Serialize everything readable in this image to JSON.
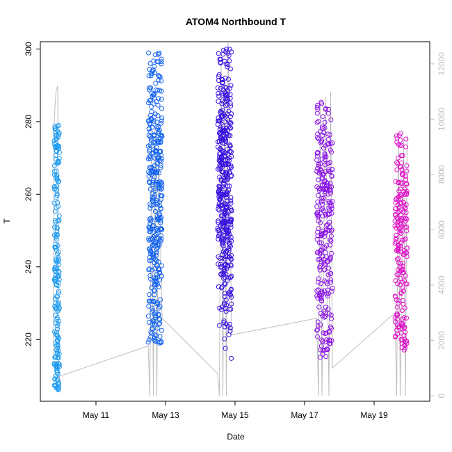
{
  "chart_data": {
    "type": "scatter",
    "title": "ATOM4 Northbound T",
    "xlabel": "Date",
    "ylabel": "T",
    "x_ticks": [
      "May 11",
      "May 13",
      "May 15",
      "May 17",
      "May 19"
    ],
    "x_tick_days": [
      11,
      13,
      15,
      17,
      19
    ],
    "xlim_days": [
      9.4,
      20.6
    ],
    "ylim": [
      203,
      302
    ],
    "y_ticks": [
      220,
      240,
      260,
      280,
      300
    ],
    "secondary_axis": {
      "side": "right",
      "color": "#bdbdbd",
      "ylim": [
        -200,
        12800
      ],
      "ticks": [
        0,
        2000,
        4000,
        6000,
        8000,
        10000,
        12000
      ]
    },
    "point_style": "open-circle",
    "point_groups": [
      {
        "color": "#1e9bf0",
        "x_range_days": [
          9.8,
          9.95
        ],
        "y_min": 206,
        "y_max": 279,
        "clusters": [
          [
            214,
            8
          ],
          [
            222,
            6
          ],
          [
            244,
            10
          ],
          [
            270,
            10
          ]
        ]
      },
      {
        "color": "#1463f0",
        "x_range_days": [
          12.5,
          12.9
        ],
        "y_min": 219,
        "y_max": 299,
        "clusters": [
          [
            225,
            10
          ],
          [
            248,
            20
          ],
          [
            270,
            20
          ],
          [
            288,
            10
          ]
        ]
      },
      {
        "color": "#3a12e0",
        "x_range_days": [
          14.5,
          14.9
        ],
        "y_min": 212,
        "y_max": 300,
        "clusters": [
          [
            230,
            8
          ],
          [
            250,
            25
          ],
          [
            270,
            25
          ],
          [
            290,
            12
          ]
        ]
      },
      {
        "color": "#8a12e6",
        "x_range_days": [
          17.35,
          17.8
        ],
        "y_min": 215,
        "y_max": 286,
        "clusters": [
          [
            228,
            12
          ],
          [
            242,
            6
          ],
          [
            258,
            20
          ],
          [
            276,
            8
          ]
        ]
      },
      {
        "color": "#e010c8",
        "x_range_days": [
          19.6,
          19.95
        ],
        "y_min": 217,
        "y_max": 277,
        "clusters": [
          [
            226,
            8
          ],
          [
            236,
            6
          ],
          [
            255,
            15
          ],
          [
            266,
            5
          ]
        ]
      }
    ],
    "secondary_series": [
      {
        "name": "",
        "color": "#bdbdbd",
        "type": "line",
        "values": [
          [
            9.78,
            1500
          ],
          [
            9.8,
            10000
          ],
          [
            9.85,
            11000
          ],
          [
            9.9,
            11200
          ],
          [
            9.93,
            500
          ],
          [
            9.95,
            700
          ],
          [
            12.5,
            1800
          ],
          [
            12.55,
            0
          ],
          [
            12.6,
            9500
          ],
          [
            12.65,
            0
          ],
          [
            12.7,
            9800
          ],
          [
            12.75,
            0
          ],
          [
            12.8,
            9000
          ],
          [
            12.9,
            2800
          ],
          [
            14.5,
            800
          ],
          [
            14.55,
            0
          ],
          [
            14.6,
            12000
          ],
          [
            14.65,
            0
          ],
          [
            14.7,
            11500
          ],
          [
            14.75,
            0
          ],
          [
            14.8,
            12800
          ],
          [
            14.9,
            2200
          ],
          [
            17.35,
            2800
          ],
          [
            17.4,
            0
          ],
          [
            17.45,
            10500
          ],
          [
            17.5,
            0
          ],
          [
            17.6,
            10800
          ],
          [
            17.7,
            0
          ],
          [
            17.75,
            11000
          ],
          [
            17.8,
            1000
          ],
          [
            19.6,
            3000
          ],
          [
            19.65,
            0
          ],
          [
            19.7,
            9500
          ],
          [
            19.75,
            0
          ],
          [
            19.85,
            9300
          ],
          [
            19.9,
            0
          ],
          [
            19.95,
            9400
          ]
        ]
      }
    ]
  }
}
